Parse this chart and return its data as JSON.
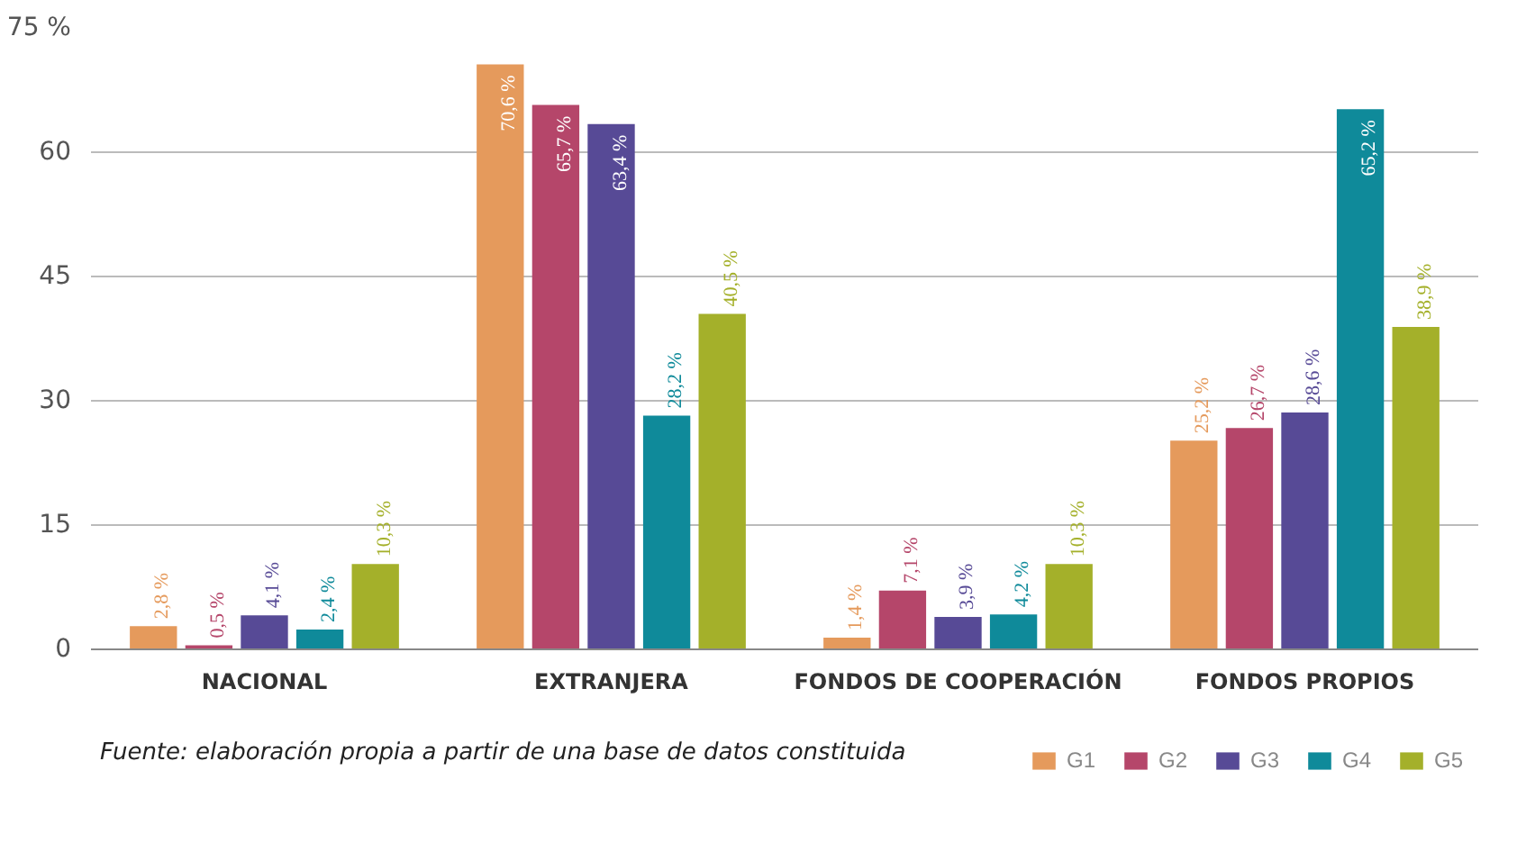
{
  "chart_data": {
    "type": "bar",
    "categories": [
      "NACIONAL",
      "EXTRANJERA",
      "FONDOS DE COOPERACIÓN",
      "FONDOS PROPIOS"
    ],
    "series": [
      {
        "name": "G1",
        "color": "#e59a5c",
        "values": [
          2.8,
          70.6,
          1.4,
          25.2
        ],
        "value_labels": [
          "2,8 %",
          "70,6 %",
          "1,4 %",
          "25,2 %"
        ]
      },
      {
        "name": "G2",
        "color": "#b5466a",
        "values": [
          0.5,
          65.7,
          7.1,
          26.7
        ],
        "value_labels": [
          "0,5 %",
          "65,7 %",
          "7,1 %",
          "26,7 %"
        ]
      },
      {
        "name": "G3",
        "color": "#574a96",
        "values": [
          4.1,
          63.4,
          3.9,
          28.6
        ],
        "value_labels": [
          "4,1 %",
          "63,4 %",
          "3,9 %",
          "28,6 %"
        ]
      },
      {
        "name": "G4",
        "color": "#0f8a9a",
        "values": [
          2.4,
          28.2,
          4.2,
          65.2
        ],
        "value_labels": [
          "2,4 %",
          "28,2 %",
          "4,2 %",
          "65,2 %"
        ]
      },
      {
        "name": "G5",
        "color": "#a4b02a",
        "values": [
          10.3,
          40.5,
          10.3,
          38.9
        ],
        "value_labels": [
          "10,3 %",
          "40,5 %",
          "10,3 %",
          "38,9 %"
        ]
      }
    ],
    "ylim": [
      0,
      75
    ],
    "yticks": [
      0,
      15,
      30,
      45,
      60,
      {
        "value": 75,
        "label": "75 %"
      }
    ],
    "grid": "y",
    "legend": "bottom right",
    "annotations": [
      "Fuente: elaboración propia a partir de una base de datos constituida"
    ]
  }
}
